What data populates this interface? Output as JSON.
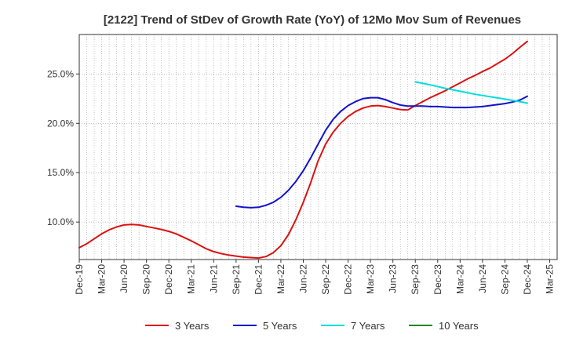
{
  "chart_data": {
    "type": "line",
    "title": "[2122]  Trend of StDev of Growth Rate (YoY) of 12Mo Mov Sum of Revenues",
    "xlabel": "",
    "ylabel": "",
    "x_range": [
      2019.917,
      2025.25
    ],
    "ylim": [
      6.2,
      29.0
    ],
    "y_ticks": [
      10.0,
      15.0,
      20.0,
      25.0
    ],
    "y_tick_labels": [
      "10.0%",
      "15.0%",
      "20.0%",
      "25.0%"
    ],
    "x_ticks": [
      {
        "label": "Dec-19",
        "x": 2019.917
      },
      {
        "label": "Mar-20",
        "x": 2020.167
      },
      {
        "label": "Jun-20",
        "x": 2020.417
      },
      {
        "label": "Sep-20",
        "x": 2020.667
      },
      {
        "label": "Dec-20",
        "x": 2020.917
      },
      {
        "label": "Mar-21",
        "x": 2021.167
      },
      {
        "label": "Jun-21",
        "x": 2021.417
      },
      {
        "label": "Sep-21",
        "x": 2021.667
      },
      {
        "label": "Dec-21",
        "x": 2021.917
      },
      {
        "label": "Mar-22",
        "x": 2022.167
      },
      {
        "label": "Jun-22",
        "x": 2022.417
      },
      {
        "label": "Sep-22",
        "x": 2022.667
      },
      {
        "label": "Dec-22",
        "x": 2022.917
      },
      {
        "label": "Mar-23",
        "x": 2023.167
      },
      {
        "label": "Jun-23",
        "x": 2023.417
      },
      {
        "label": "Sep-23",
        "x": 2023.667
      },
      {
        "label": "Dec-23",
        "x": 2023.917
      },
      {
        "label": "Mar-24",
        "x": 2024.167
      },
      {
        "label": "Jun-24",
        "x": 2024.417
      },
      {
        "label": "Sep-24",
        "x": 2024.667
      },
      {
        "label": "Dec-24",
        "x": 2024.917
      },
      {
        "label": "Mar-25",
        "x": 2025.167
      }
    ],
    "grid": true,
    "legend_position": "bottom",
    "series": [
      {
        "name": "3 Years",
        "color": "#dd1111",
        "points": [
          [
            2019.917,
            7.4
          ],
          [
            2020.0,
            7.8
          ],
          [
            2020.083,
            8.3
          ],
          [
            2020.167,
            8.8
          ],
          [
            2020.25,
            9.2
          ],
          [
            2020.333,
            9.5
          ],
          [
            2020.417,
            9.7
          ],
          [
            2020.5,
            9.75
          ],
          [
            2020.583,
            9.7
          ],
          [
            2020.667,
            9.55
          ],
          [
            2020.75,
            9.4
          ],
          [
            2020.833,
            9.25
          ],
          [
            2020.917,
            9.05
          ],
          [
            2021.0,
            8.8
          ],
          [
            2021.083,
            8.45
          ],
          [
            2021.167,
            8.1
          ],
          [
            2021.25,
            7.7
          ],
          [
            2021.333,
            7.3
          ],
          [
            2021.417,
            7.0
          ],
          [
            2021.5,
            6.8
          ],
          [
            2021.583,
            6.65
          ],
          [
            2021.667,
            6.55
          ],
          [
            2021.75,
            6.45
          ],
          [
            2021.833,
            6.4
          ],
          [
            2021.917,
            6.35
          ],
          [
            2022.0,
            6.5
          ],
          [
            2022.083,
            6.9
          ],
          [
            2022.167,
            7.6
          ],
          [
            2022.25,
            8.7
          ],
          [
            2022.333,
            10.2
          ],
          [
            2022.417,
            12.0
          ],
          [
            2022.5,
            14.0
          ],
          [
            2022.583,
            16.2
          ],
          [
            2022.667,
            17.9
          ],
          [
            2022.75,
            19.1
          ],
          [
            2022.833,
            20.0
          ],
          [
            2022.917,
            20.7
          ],
          [
            2023.0,
            21.2
          ],
          [
            2023.083,
            21.55
          ],
          [
            2023.167,
            21.75
          ],
          [
            2023.25,
            21.8
          ],
          [
            2023.333,
            21.7
          ],
          [
            2023.417,
            21.55
          ],
          [
            2023.5,
            21.4
          ],
          [
            2023.583,
            21.35
          ],
          [
            2023.667,
            21.8
          ],
          [
            2023.75,
            22.2
          ],
          [
            2023.833,
            22.6
          ],
          [
            2023.917,
            22.95
          ],
          [
            2024.0,
            23.3
          ],
          [
            2024.083,
            23.7
          ],
          [
            2024.167,
            24.1
          ],
          [
            2024.25,
            24.5
          ],
          [
            2024.333,
            24.85
          ],
          [
            2024.417,
            25.25
          ],
          [
            2024.5,
            25.6
          ],
          [
            2024.583,
            26.05
          ],
          [
            2024.667,
            26.5
          ],
          [
            2024.75,
            27.05
          ],
          [
            2024.833,
            27.7
          ],
          [
            2024.917,
            28.3
          ]
        ]
      },
      {
        "name": "5 Years",
        "color": "#1111cc",
        "points": [
          [
            2021.667,
            11.6
          ],
          [
            2021.75,
            11.5
          ],
          [
            2021.833,
            11.45
          ],
          [
            2021.917,
            11.5
          ],
          [
            2022.0,
            11.7
          ],
          [
            2022.083,
            12.0
          ],
          [
            2022.167,
            12.5
          ],
          [
            2022.25,
            13.2
          ],
          [
            2022.333,
            14.1
          ],
          [
            2022.417,
            15.2
          ],
          [
            2022.5,
            16.5
          ],
          [
            2022.583,
            17.9
          ],
          [
            2022.667,
            19.3
          ],
          [
            2022.75,
            20.4
          ],
          [
            2022.833,
            21.2
          ],
          [
            2022.917,
            21.8
          ],
          [
            2023.0,
            22.2
          ],
          [
            2023.083,
            22.5
          ],
          [
            2023.167,
            22.6
          ],
          [
            2023.25,
            22.6
          ],
          [
            2023.333,
            22.4
          ],
          [
            2023.417,
            22.1
          ],
          [
            2023.5,
            21.85
          ],
          [
            2023.583,
            21.75
          ],
          [
            2023.667,
            21.75
          ],
          [
            2023.75,
            21.75
          ],
          [
            2023.833,
            21.7
          ],
          [
            2023.917,
            21.7
          ],
          [
            2024.0,
            21.65
          ],
          [
            2024.083,
            21.6
          ],
          [
            2024.167,
            21.6
          ],
          [
            2024.25,
            21.6
          ],
          [
            2024.333,
            21.65
          ],
          [
            2024.417,
            21.7
          ],
          [
            2024.5,
            21.8
          ],
          [
            2024.583,
            21.9
          ],
          [
            2024.667,
            22.0
          ],
          [
            2024.75,
            22.15
          ],
          [
            2024.833,
            22.35
          ],
          [
            2024.917,
            22.75
          ]
        ]
      },
      {
        "name": "7 Years",
        "color": "#00dddd",
        "points": [
          [
            2023.667,
            24.2
          ],
          [
            2023.833,
            23.9
          ],
          [
            2024.0,
            23.55
          ],
          [
            2024.167,
            23.25
          ],
          [
            2024.333,
            22.95
          ],
          [
            2024.5,
            22.7
          ],
          [
            2024.667,
            22.45
          ],
          [
            2024.833,
            22.2
          ],
          [
            2024.917,
            22.05
          ]
        ]
      },
      {
        "name": "10 Years",
        "color": "#228822",
        "points": []
      }
    ]
  }
}
